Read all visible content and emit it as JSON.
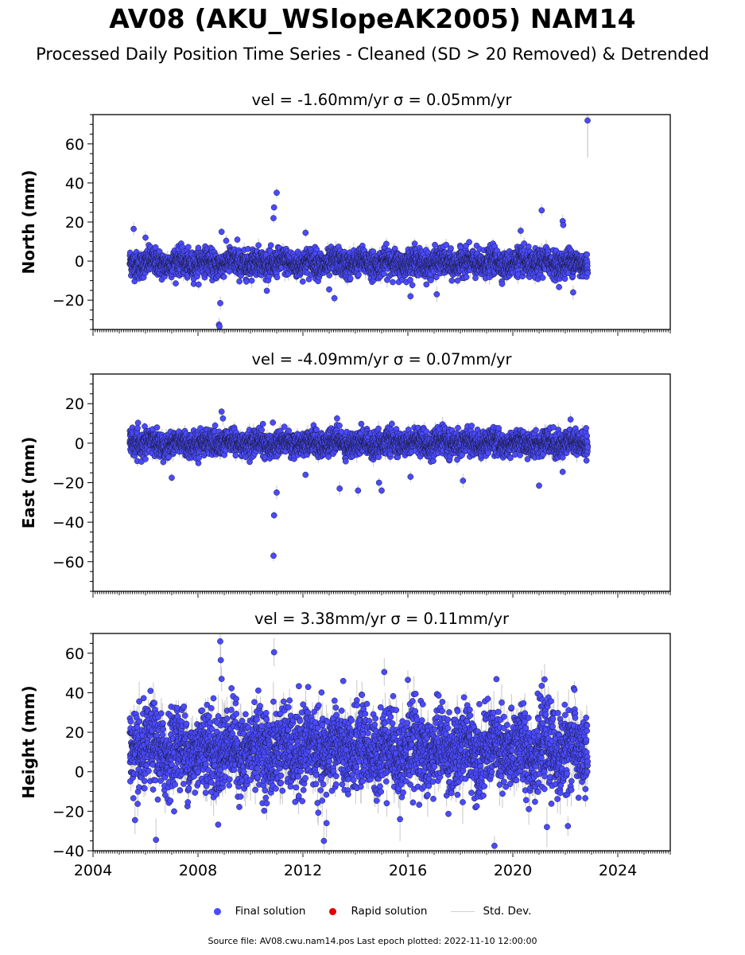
{
  "page": {
    "title": "AV08 (AKU_WSlopeAK2005) NAM14",
    "subtitle": "Processed Daily Position Time Series - Cleaned (SD > 20 Removed) & Detrended",
    "footer": "Source file: AV08.cwu.nam14.pos  Last epoch plotted: 2022-11-10 12:00:00"
  },
  "legend": {
    "items": [
      {
        "label": "Final solution",
        "color": "#4a4aff"
      },
      {
        "label": "Rapid solution",
        "color": "#e00000"
      },
      {
        "label": "Std. Dev.",
        "color": "#d0d0d0"
      }
    ]
  },
  "colors": {
    "final": "#4a4aff",
    "edge": "#1a1a3a",
    "stddev": "#c8c8c8",
    "axis": "#000000"
  },
  "chart_data": [
    {
      "type": "scatter",
      "title": "vel = -1.60mm/yr   σ = 0.05mm/yr",
      "ylabel": "North (mm)",
      "xlim": [
        2004.0,
        2026.0
      ],
      "ylim": [
        -35,
        75
      ],
      "yticks": [
        -20,
        0,
        20,
        40,
        60
      ],
      "x_range": [
        2005.4,
        2022.86
      ],
      "band": {
        "center": -1,
        "spread": 3.3,
        "trend": -0.1
      },
      "outliers": [
        {
          "x": 2005.55,
          "y": 16.5
        },
        {
          "x": 2006.0,
          "y": 12.0
        },
        {
          "x": 2008.9,
          "y": 15.0
        },
        {
          "x": 2008.85,
          "y": -21.5
        },
        {
          "x": 2008.8,
          "y": -32.5
        },
        {
          "x": 2008.82,
          "y": -33.5
        },
        {
          "x": 2009.5,
          "y": 11.0
        },
        {
          "x": 2010.9,
          "y": 27.5
        },
        {
          "x": 2010.88,
          "y": 22.0
        },
        {
          "x": 2011.0,
          "y": 35.0
        },
        {
          "x": 2012.1,
          "y": 14.5
        },
        {
          "x": 2013.2,
          "y": -19.0
        },
        {
          "x": 2013.0,
          "y": -14.5
        },
        {
          "x": 2016.1,
          "y": -18.0
        },
        {
          "x": 2017.1,
          "y": -17.0
        },
        {
          "x": 2020.3,
          "y": 15.5
        },
        {
          "x": 2021.1,
          "y": 26.0
        },
        {
          "x": 2021.9,
          "y": 20.5
        },
        {
          "x": 2021.92,
          "y": 18.5
        },
        {
          "x": 2022.85,
          "y": 72.0
        },
        {
          "x": 2022.3,
          "y": -16.0
        }
      ]
    },
    {
      "type": "scatter",
      "title": "vel = -4.09mm/yr   σ = 0.07mm/yr",
      "ylabel": "East (mm)",
      "xlim": [
        2004.0,
        2026.0
      ],
      "ylim": [
        -75,
        35
      ],
      "yticks": [
        -60,
        -40,
        -20,
        0,
        20
      ],
      "x_range": [
        2005.4,
        2022.86
      ],
      "band": {
        "center": 0,
        "spread": 3.0,
        "trend": 0.0
      },
      "outliers": [
        {
          "x": 2008.9,
          "y": 16.0
        },
        {
          "x": 2008.95,
          "y": 12.5
        },
        {
          "x": 2010.9,
          "y": -36.5
        },
        {
          "x": 2010.88,
          "y": -57.0
        },
        {
          "x": 2011.0,
          "y": -25.0
        },
        {
          "x": 2007.0,
          "y": -17.5
        },
        {
          "x": 2012.1,
          "y": -16.0
        },
        {
          "x": 2013.4,
          "y": -23.0
        },
        {
          "x": 2014.1,
          "y": -24.0
        },
        {
          "x": 2015.0,
          "y": -24.0
        },
        {
          "x": 2014.9,
          "y": -20.0
        },
        {
          "x": 2016.1,
          "y": -17.0
        },
        {
          "x": 2018.1,
          "y": -19.0
        },
        {
          "x": 2021.0,
          "y": -21.5
        },
        {
          "x": 2021.9,
          "y": -14.5
        },
        {
          "x": 2013.3,
          "y": 12.5
        },
        {
          "x": 2022.2,
          "y": 12.0
        }
      ]
    },
    {
      "type": "scatter",
      "title": "vel = 3.38mm/yr   σ = 0.11mm/yr",
      "ylabel": "Height (mm)",
      "xlim": [
        2004.0,
        2026.0
      ],
      "ylim": [
        -40,
        70
      ],
      "yticks": [
        -40,
        -20,
        0,
        20,
        40,
        60
      ],
      "xticks": [
        2004,
        2008,
        2012,
        2016,
        2020,
        2024
      ],
      "x_range": [
        2005.4,
        2022.86
      ],
      "band": {
        "center": 11,
        "spread": 10.0,
        "trend": 0.0
      },
      "outliers": [
        {
          "x": 2008.85,
          "y": 66.0
        },
        {
          "x": 2008.87,
          "y": 56.5
        },
        {
          "x": 2008.9,
          "y": 47.0
        },
        {
          "x": 2010.9,
          "y": 60.5
        },
        {
          "x": 2006.4,
          "y": -34.5
        },
        {
          "x": 2012.8,
          "y": -35.0
        },
        {
          "x": 2019.3,
          "y": -37.5
        },
        {
          "x": 2005.6,
          "y": -24.5
        },
        {
          "x": 2012.9,
          "y": -26.0
        },
        {
          "x": 2015.7,
          "y": -24.0
        },
        {
          "x": 2016.0,
          "y": 46.5
        },
        {
          "x": 2015.1,
          "y": 50.5
        },
        {
          "x": 2021.1,
          "y": 43.5
        },
        {
          "x": 2021.3,
          "y": -28.0
        },
        {
          "x": 2022.1,
          "y": -27.5
        }
      ]
    }
  ]
}
